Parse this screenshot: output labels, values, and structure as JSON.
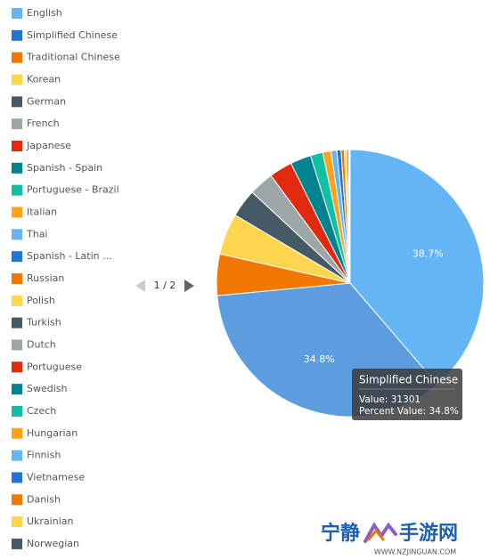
{
  "chart_data": {
    "type": "pie",
    "categories": [
      "English",
      "Simplified Chinese",
      "Traditional Chinese",
      "Korean",
      "German",
      "French",
      "Japanese",
      "Spanish - Spain",
      "Portuguese - Brazil",
      "Italian",
      "Thai",
      "Spanish - Latin ...",
      "Russian",
      "Polish",
      "Turkish",
      "Dutch",
      "Portuguese",
      "Swedish",
      "Czech",
      "Hungarian",
      "Finnish",
      "Vietnamese",
      "Danish",
      "Ukrainian",
      "Norwegian"
    ],
    "values": [
      38.7,
      34.8,
      5.0,
      5.0,
      3.4,
      3.0,
      2.8,
      2.5,
      1.5,
      1.0,
      0.7,
      0.5,
      0.4,
      0.3,
      0.2,
      0.1,
      0.01,
      0.01,
      0.01,
      0.01,
      0.01,
      0.01,
      0.01,
      0.01,
      0.01
    ],
    "value_labels": [
      "38.7%",
      "34.8%",
      null,
      null,
      null,
      null,
      null,
      null,
      null,
      null,
      null,
      null,
      null,
      null,
      null,
      null,
      null,
      null,
      null,
      null,
      null,
      null,
      null,
      null,
      null
    ],
    "colors": [
      "#64b5f6",
      "#1e76d2",
      "#f07800",
      "#ffd54f",
      "#455a64",
      "#9ea7a8",
      "#e0290e",
      "#00838f",
      "#12bfa5",
      "#ffa21a",
      "#64b5f6",
      "#1e76d2",
      "#f07800",
      "#ffd54f",
      "#455a64",
      "#9ea7a8",
      "#e0290e",
      "#00838f",
      "#12bfa5",
      "#ffa21a",
      "#64b5f6",
      "#1e76d2",
      "#f07800",
      "#ffd54f",
      "#455a64"
    ],
    "legend_page": "1 / 2",
    "tooltip": {
      "title": "Simplified Chinese",
      "value": "Value: 31301",
      "percent": "Percent Value: 34.8%"
    }
  },
  "watermark": {
    "name_left": "宁静",
    "name_right": "手游网",
    "url": "WWW.NZJINGUAN.COM"
  }
}
